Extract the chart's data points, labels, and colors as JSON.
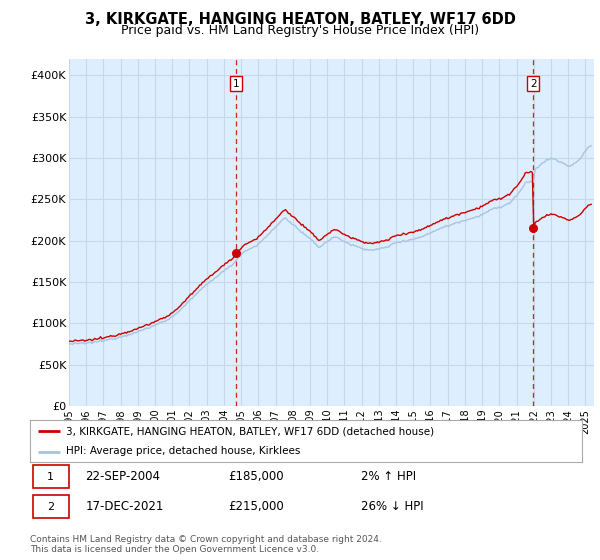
{
  "title": "3, KIRKGATE, HANGING HEATON, BATLEY, WF17 6DD",
  "subtitle": "Price paid vs. HM Land Registry's House Price Index (HPI)",
  "ylabel_ticks": [
    "£0",
    "£50K",
    "£100K",
    "£150K",
    "£200K",
    "£250K",
    "£300K",
    "£350K",
    "£400K"
  ],
  "ytick_values": [
    0,
    50000,
    100000,
    150000,
    200000,
    250000,
    300000,
    350000,
    400000
  ],
  "ylim": [
    0,
    420000
  ],
  "xlim_start": 1995.0,
  "xlim_end": 2025.5,
  "hpi_color": "#a8c4e0",
  "price_color": "#cc0000",
  "dashed_color": "#cc0000",
  "background_color": "#ffffff",
  "plot_bg_color": "#ddeeff",
  "grid_color": "#c8d8e8",
  "transaction1_x": 2004.72,
  "transaction1_y": 185000,
  "transaction2_x": 2021.96,
  "transaction2_y": 215000,
  "legend_line1": "3, KIRKGATE, HANGING HEATON, BATLEY, WF17 6DD (detached house)",
  "legend_line2": "HPI: Average price, detached house, Kirklees",
  "table_row1": [
    "1",
    "22-SEP-2004",
    "£185,000",
    "2% ↑ HPI"
  ],
  "table_row2": [
    "2",
    "17-DEC-2021",
    "£215,000",
    "26% ↓ HPI"
  ],
  "footer": "Contains HM Land Registry data © Crown copyright and database right 2024.\nThis data is licensed under the Open Government Licence v3.0.",
  "title_fontsize": 10.5,
  "subtitle_fontsize": 9
}
